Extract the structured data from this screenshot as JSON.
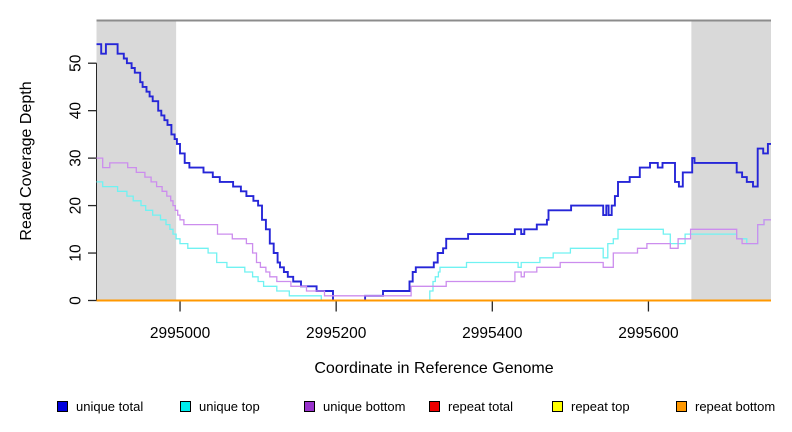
{
  "figure": {
    "xlabel": "Coordinate in Reference Genome",
    "ylabel": "Read Coverage Depth"
  },
  "chart_data": {
    "type": "line",
    "step": true,
    "title": "",
    "xlabel": "Coordinate in Reference Genome",
    "ylabel": "Read Coverage Depth",
    "xlim": [
      2994893,
      2995757
    ],
    "ylim": [
      0,
      59
    ],
    "x_ticks": [
      2995000,
      2995200,
      2995400,
      2995600
    ],
    "y_ticks": [
      0,
      10,
      20,
      30,
      40,
      50
    ],
    "grid": false,
    "legend_position": "bottom",
    "shade_color": "#d9d9d9",
    "top_border_color": "#8c8c8c",
    "axis_color": "#262626",
    "shaded_regions": [
      {
        "from": 2994893,
        "to": 2994995,
        "meaning": "repeat region"
      },
      {
        "from": 2995655,
        "to": 2995757,
        "meaning": "repeat region"
      }
    ],
    "series": [
      {
        "name": "unique total",
        "color": "#2626d8",
        "swatch": "#0000dd",
        "width": 1.9,
        "points": [
          [
            2994893,
            54
          ],
          [
            2994899,
            52
          ],
          [
            2994905,
            54
          ],
          [
            2994920,
            52
          ],
          [
            2994928,
            51
          ],
          [
            2994932,
            50
          ],
          [
            2994938,
            49
          ],
          [
            2994942,
            48
          ],
          [
            2994949,
            46
          ],
          [
            2994952,
            45
          ],
          [
            2994957,
            44
          ],
          [
            2994961,
            43
          ],
          [
            2994965,
            42
          ],
          [
            2994972,
            40
          ],
          [
            2994976,
            39
          ],
          [
            2994980,
            38
          ],
          [
            2994984,
            37
          ],
          [
            2994989,
            35
          ],
          [
            2994993,
            34
          ],
          [
            2994996,
            33
          ],
          [
            2995000,
            31
          ],
          [
            2995006,
            29
          ],
          [
            2995012,
            28
          ],
          [
            2995030,
            27
          ],
          [
            2995042,
            26
          ],
          [
            2995051,
            25
          ],
          [
            2995068,
            24
          ],
          [
            2995078,
            23
          ],
          [
            2995085,
            22
          ],
          [
            2995094,
            21
          ],
          [
            2995100,
            20
          ],
          [
            2995105,
            17
          ],
          [
            2995110,
            15
          ],
          [
            2995115,
            12
          ],
          [
            2995120,
            10
          ],
          [
            2995125,
            8
          ],
          [
            2995128,
            7
          ],
          [
            2995133,
            6
          ],
          [
            2995138,
            5
          ],
          [
            2995145,
            4
          ],
          [
            2995155,
            3
          ],
          [
            2995175,
            2
          ],
          [
            2995196,
            0
          ],
          [
            2995237,
            1
          ],
          [
            2995260,
            2
          ],
          [
            2995294,
            4
          ],
          [
            2995298,
            6
          ],
          [
            2995302,
            7
          ],
          [
            2995325,
            8
          ],
          [
            2995330,
            10
          ],
          [
            2995337,
            11
          ],
          [
            2995341,
            13
          ],
          [
            2995369,
            14
          ],
          [
            2995429,
            15
          ],
          [
            2995437,
            14
          ],
          [
            2995441,
            15
          ],
          [
            2995457,
            16
          ],
          [
            2995470,
            17
          ],
          [
            2995472,
            19
          ],
          [
            2995501,
            20
          ],
          [
            2995542,
            18
          ],
          [
            2995546,
            20
          ],
          [
            2995549,
            18
          ],
          [
            2995553,
            20
          ],
          [
            2995557,
            22
          ],
          [
            2995561,
            25
          ],
          [
            2995576,
            26
          ],
          [
            2995589,
            28
          ],
          [
            2995602,
            29
          ],
          [
            2995612,
            28
          ],
          [
            2995618,
            29
          ],
          [
            2995634,
            25
          ],
          [
            2995639,
            24
          ],
          [
            2995644,
            27
          ],
          [
            2995656,
            30
          ],
          [
            2995659,
            29
          ],
          [
            2995713,
            27
          ],
          [
            2995720,
            26
          ],
          [
            2995726,
            25
          ],
          [
            2995734,
            24
          ],
          [
            2995740,
            32
          ],
          [
            2995747,
            31
          ],
          [
            2995753,
            33
          ]
        ]
      },
      {
        "name": "unique top",
        "color": "#70f2f2",
        "swatch": "#00eeee",
        "width": 1.3,
        "points": [
          [
            2994893,
            25
          ],
          [
            2994901,
            24
          ],
          [
            2994920,
            23
          ],
          [
            2994932,
            22
          ],
          [
            2994940,
            21
          ],
          [
            2994950,
            20
          ],
          [
            2994956,
            19
          ],
          [
            2994965,
            18
          ],
          [
            2994975,
            17
          ],
          [
            2994982,
            16
          ],
          [
            2994987,
            15
          ],
          [
            2994991,
            14
          ],
          [
            2994995,
            13
          ],
          [
            2995000,
            12
          ],
          [
            2995010,
            11
          ],
          [
            2995036,
            10
          ],
          [
            2995047,
            8
          ],
          [
            2995060,
            7
          ],
          [
            2995083,
            6
          ],
          [
            2995093,
            5
          ],
          [
            2995100,
            4
          ],
          [
            2995107,
            3
          ],
          [
            2995124,
            2
          ],
          [
            2995140,
            1
          ],
          [
            2995181,
            0
          ],
          [
            2995320,
            2
          ],
          [
            2995324,
            4
          ],
          [
            2995327,
            5
          ],
          [
            2995331,
            6
          ],
          [
            2995333,
            7
          ],
          [
            2995367,
            8
          ],
          [
            2995433,
            7
          ],
          [
            2995437,
            8
          ],
          [
            2995461,
            9
          ],
          [
            2995478,
            10
          ],
          [
            2995500,
            11
          ],
          [
            2995542,
            9
          ],
          [
            2995548,
            12
          ],
          [
            2995555,
            13
          ],
          [
            2995561,
            15
          ],
          [
            2995619,
            14
          ],
          [
            2995628,
            12
          ],
          [
            2995647,
            14
          ],
          [
            2995713,
            13
          ],
          [
            2995726,
            12
          ],
          [
            2995740,
            16
          ],
          [
            2995748,
            17
          ]
        ]
      },
      {
        "name": "unique bottom",
        "color": "#cc8dee",
        "swatch": "#9933cc",
        "width": 1.3,
        "points": [
          [
            2994893,
            30
          ],
          [
            2994901,
            28
          ],
          [
            2994910,
            29
          ],
          [
            2994933,
            28
          ],
          [
            2994944,
            27
          ],
          [
            2994955,
            26
          ],
          [
            2994963,
            25
          ],
          [
            2994970,
            24
          ],
          [
            2994977,
            23
          ],
          [
            2994983,
            22
          ],
          [
            2994988,
            21
          ],
          [
            2994991,
            20
          ],
          [
            2994994,
            19
          ],
          [
            2994997,
            18
          ],
          [
            2995000,
            17
          ],
          [
            2995005,
            16
          ],
          [
            2995048,
            14
          ],
          [
            2995067,
            13
          ],
          [
            2995085,
            12
          ],
          [
            2995093,
            10
          ],
          [
            2995098,
            8
          ],
          [
            2995103,
            7
          ],
          [
            2995110,
            6
          ],
          [
            2995115,
            5
          ],
          [
            2995124,
            4
          ],
          [
            2995142,
            3
          ],
          [
            2995162,
            2
          ],
          [
            2995185,
            1
          ],
          [
            2995296,
            3
          ],
          [
            2995341,
            4
          ],
          [
            2995429,
            6
          ],
          [
            2995437,
            5
          ],
          [
            2995441,
            6
          ],
          [
            2995457,
            7
          ],
          [
            2995487,
            8
          ],
          [
            2995542,
            7
          ],
          [
            2995555,
            10
          ],
          [
            2995586,
            11
          ],
          [
            2995598,
            12
          ],
          [
            2995628,
            11
          ],
          [
            2995638,
            13
          ],
          [
            2995654,
            15
          ],
          [
            2995713,
            13
          ],
          [
            2995720,
            12
          ],
          [
            2995740,
            16
          ],
          [
            2995748,
            17
          ]
        ]
      },
      {
        "name": "repeat total",
        "color": "#dd0000",
        "swatch": "#ee0000",
        "width": 1.3,
        "points": [
          [
            2994893,
            0
          ]
        ]
      },
      {
        "name": "repeat top",
        "color": "#ffff00",
        "swatch": "#ffff00",
        "width": 1.3,
        "points": [
          [
            2994893,
            0
          ]
        ]
      },
      {
        "name": "repeat bottom",
        "color": "#ff9800",
        "swatch": "#ff9800",
        "width": 1.9,
        "points": [
          [
            2994893,
            0
          ]
        ]
      }
    ]
  }
}
